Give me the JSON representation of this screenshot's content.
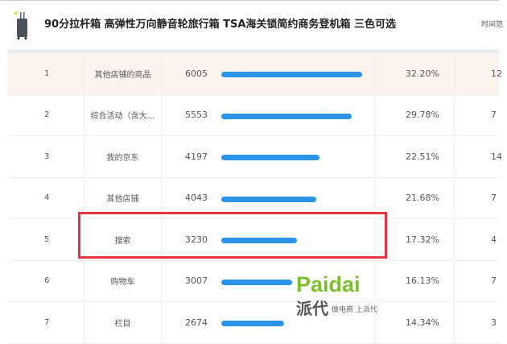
{
  "header": {
    "title": "90分拉杆箱 高弹性万向静音轮旅行箱 TSA海关锁简约商务登机箱 三色可选",
    "time_label": "时间范"
  },
  "rows": [
    {
      "rank": "1",
      "source": "其他店铺的商品",
      "value": "6005",
      "share": "32.20%",
      "bar": 32.2,
      "last": "12"
    },
    {
      "rank": "2",
      "source": "综合活动（含大…",
      "value": "5553",
      "share": "29.78%",
      "bar": 29.78,
      "last": "7"
    },
    {
      "rank": "3",
      "source": "我的京东",
      "value": "4197",
      "share": "22.51%",
      "bar": 22.51,
      "last": "14"
    },
    {
      "rank": "4",
      "source": "其他店铺",
      "value": "4043",
      "share": "21.68%",
      "bar": 21.68,
      "last": "7"
    },
    {
      "rank": "5",
      "source": "搜索",
      "value": "3230",
      "share": "17.32%",
      "bar": 17.32,
      "last": "4"
    },
    {
      "rank": "6",
      "source": "购物车",
      "value": "3007",
      "share": "16.13%",
      "bar": 16.13,
      "last": "7"
    },
    {
      "rank": "7",
      "source": "栏目",
      "value": "2674",
      "share": "14.34%",
      "bar": 14.34,
      "last": "3"
    }
  ],
  "watermark": {
    "logo": "Paidai",
    "logo_cn": "派代",
    "slogan": "做电商 上派代"
  },
  "colors": {
    "bar": "#2a94e8",
    "highlight_box": "#e8333f",
    "first_row_bg": "#fdf3ee"
  }
}
